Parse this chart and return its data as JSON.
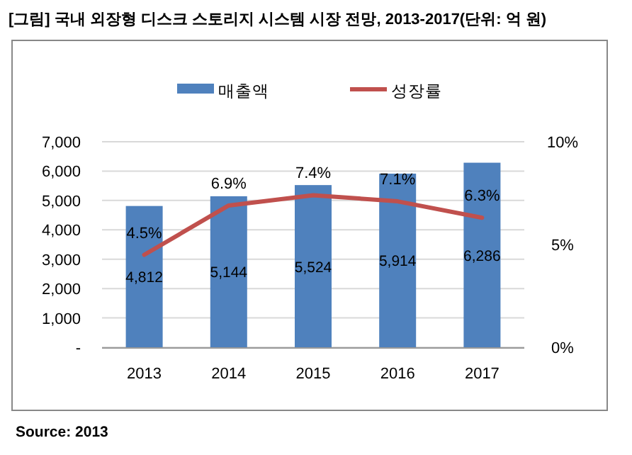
{
  "chart_data": {
    "type": "bar",
    "title": "[그림] 국내 외장형 디스크 스토리지 시스템 시장 전망, 2013-2017(단위: 억 원)",
    "categories": [
      "2013",
      "2014",
      "2015",
      "2016",
      "2017"
    ],
    "series": [
      {
        "name": "매출액",
        "color": "#4f81bd",
        "values": [
          4812,
          5144,
          5524,
          5914,
          6286
        ],
        "value_labels": [
          "4,812",
          "5,144",
          "5,524",
          "5,914",
          "6,286"
        ]
      },
      {
        "name": "성장률",
        "type": "line",
        "axis": "y2",
        "color": "#c0504d",
        "values": [
          4.5,
          6.9,
          7.4,
          7.1,
          6.3
        ],
        "value_labels": [
          "4.5%",
          "6.9%",
          "7.4%",
          "7.1%",
          "6.3%"
        ]
      }
    ],
    "ylim": [
      0,
      7000
    ],
    "yticks": [
      {
        "value": 0,
        "label": "-"
      },
      {
        "value": 1000,
        "label": "1,000"
      },
      {
        "value": 2000,
        "label": "2,000"
      },
      {
        "value": 3000,
        "label": "3,000"
      },
      {
        "value": 4000,
        "label": "4,000"
      },
      {
        "value": 5000,
        "label": "5,000"
      },
      {
        "value": 6000,
        "label": "6,000"
      },
      {
        "value": 7000,
        "label": "7,000"
      }
    ],
    "y2lim": [
      0,
      10
    ],
    "y2ticks": [
      {
        "value": 0,
        "label": "0%"
      },
      {
        "value": 5,
        "label": "5%"
      },
      {
        "value": 10,
        "label": "10%"
      }
    ],
    "grid": "y",
    "legend": "top",
    "annotations": [
      "Source: 2013"
    ]
  }
}
